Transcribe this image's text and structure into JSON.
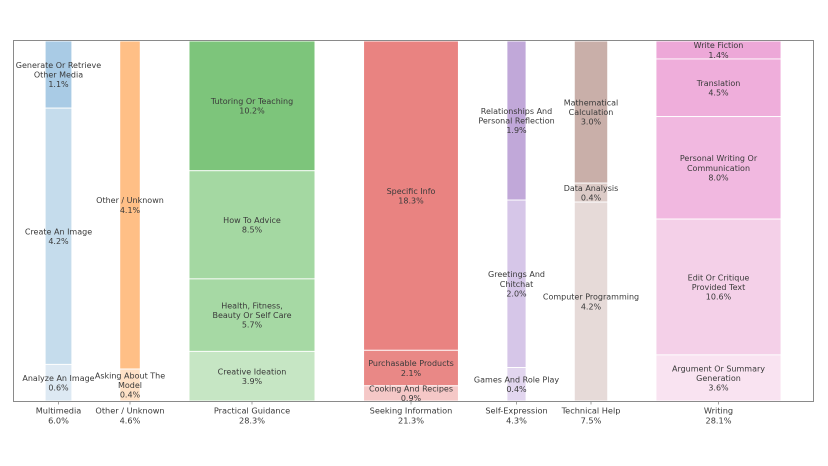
{
  "chart_data": {
    "type": "bar",
    "subtype": "stacked-marimekko-normalized",
    "title": "",
    "xlabel": "",
    "ylabel": "",
    "grid": false,
    "legend": "none",
    "categories": [
      {
        "name": "Multimedia",
        "share_label": "6.0%",
        "share": 6.0,
        "color": "#a6cbe6",
        "segments": [
          {
            "label": "Generate Or Retrieve Other Media",
            "lines": [
              "Generate Or Retrieve",
              "Other Media"
            ],
            "value": 1.1,
            "value_label": "1.1%",
            "color": "#a9cbe5"
          },
          {
            "label": "Create An Image",
            "lines": [
              "Create An Image"
            ],
            "value": 4.2,
            "value_label": "4.2%",
            "color": "#c5dcec"
          },
          {
            "label": "Analyze An Image",
            "lines": [
              "Analyze An Image"
            ],
            "value": 0.6,
            "value_label": "0.6%",
            "color": "#dde9f3"
          }
        ]
      },
      {
        "name": "Other / Unknown",
        "share_label": "4.6%",
        "share": 4.6,
        "color": "#ffbf86",
        "segments": [
          {
            "label": "Other / Unknown",
            "lines": [
              "Other / Unknown"
            ],
            "value": 4.1,
            "value_label": "4.1%",
            "color": "#ffbf86"
          },
          {
            "label": "Asking About The Model",
            "lines": [
              "Asking About The",
              "Model"
            ],
            "value": 0.4,
            "value_label": "0.4%",
            "color": "#ffe1c6"
          }
        ]
      },
      {
        "name": "Practical Guidance",
        "share_label": "28.3%",
        "share": 28.3,
        "color": "#7cc57b",
        "segments": [
          {
            "label": "Tutoring Or Teaching",
            "lines": [
              "Tutoring Or Teaching"
            ],
            "value": 10.2,
            "value_label": "10.2%",
            "color": "#7dc57b"
          },
          {
            "label": "How To Advice",
            "lines": [
              "How To Advice"
            ],
            "value": 8.5,
            "value_label": "8.5%",
            "color": "#a4d8a2"
          },
          {
            "label": "Health, Fitness, Beauty Or Self Care",
            "lines": [
              "Health, Fitness,",
              "Beauty Or Self Care"
            ],
            "value": 5.7,
            "value_label": "5.7%",
            "color": "#a6d9a4"
          },
          {
            "label": "Creative Ideation",
            "lines": [
              "Creative Ideation"
            ],
            "value": 3.9,
            "value_label": "3.9%",
            "color": "#c6e6c4"
          }
        ]
      },
      {
        "name": "Seeking Information",
        "share_label": "21.3%",
        "share": 21.3,
        "color": "#e98482",
        "segments": [
          {
            "label": "Specific Info",
            "lines": [
              "Specific Info"
            ],
            "value": 18.3,
            "value_label": "18.3%",
            "color": "#e98381"
          },
          {
            "label": "Purchasable Products",
            "lines": [
              "Purchasable Products"
            ],
            "value": 2.1,
            "value_label": "2.1%",
            "color": "#e98886"
          },
          {
            "label": "Cooking And Recipes",
            "lines": [
              "Cooking And Recipes"
            ],
            "value": 0.9,
            "value_label": "0.9%",
            "color": "#f5c8c7"
          }
        ]
      },
      {
        "name": "Self-Expression",
        "share_label": "4.3%",
        "share": 4.3,
        "color": "#c1a9d9",
        "segments": [
          {
            "label": "Relationships And Personal Reflection",
            "lines": [
              "Relationships And",
              "Personal Reflection"
            ],
            "value": 1.9,
            "value_label": "1.9%",
            "color": "#c1a8d9"
          },
          {
            "label": "Greetings And Chitchat",
            "lines": [
              "Greetings And",
              "Chitchat"
            ],
            "value": 2.0,
            "value_label": "2.0%",
            "color": "#d6c6e8"
          },
          {
            "label": "Games And Role Play",
            "lines": [
              "Games And Role Play"
            ],
            "value": 0.4,
            "value_label": "0.4%",
            "color": "#e2d6ef"
          }
        ]
      },
      {
        "name": "Technical Help",
        "share_label": "7.5%",
        "share": 7.5,
        "color": "#c9aea8",
        "segments": [
          {
            "label": "Mathematical Calculation",
            "lines": [
              "Mathematical",
              "Calculation"
            ],
            "value": 3.0,
            "value_label": "3.0%",
            "color": "#c9afa9"
          },
          {
            "label": "Data Analysis",
            "lines": [
              "Data Analysis"
            ],
            "value": 0.4,
            "value_label": "0.4%",
            "color": "#dccbc7"
          },
          {
            "label": "Computer Programming",
            "lines": [
              "Computer Programming"
            ],
            "value": 4.2,
            "value_label": "4.2%",
            "color": "#e6dad8"
          }
        ]
      },
      {
        "name": "Writing",
        "share_label": "28.1%",
        "share": 28.1,
        "color": "#eda9d9",
        "segments": [
          {
            "label": "Write Fiction",
            "lines": [
              "Write Fiction"
            ],
            "value": 1.4,
            "value_label": "1.4%",
            "color": "#eda8d8"
          },
          {
            "label": "Translation",
            "lines": [
              "Translation"
            ],
            "value": 4.5,
            "value_label": "4.5%",
            "color": "#efaedb"
          },
          {
            "label": "Personal Writing Or Communication",
            "lines": [
              "Personal Writing Or",
              "Communication"
            ],
            "value": 8.0,
            "value_label": "8.0%",
            "color": "#f1b8e0"
          },
          {
            "label": "Edit Or Critique Provided Text",
            "lines": [
              "Edit Or Critique",
              "Provided Text"
            ],
            "value": 10.6,
            "value_label": "10.6%",
            "color": "#f4d0e8"
          },
          {
            "label": "Argument Or Summary Generation",
            "lines": [
              "Argument Or Summary",
              "Generation"
            ],
            "value": 3.6,
            "value_label": "3.6%",
            "color": "#f9e3f1"
          }
        ]
      }
    ]
  }
}
